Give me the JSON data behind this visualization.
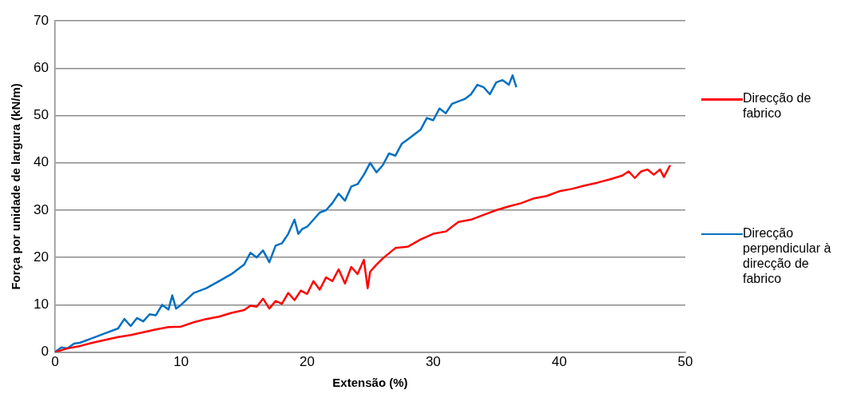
{
  "chart_data": {
    "type": "line",
    "xlabel": "Extensão (%)",
    "ylabel": "Força por unidade de largura (kN/m)",
    "xlim": [
      0,
      50
    ],
    "xticks": [
      0,
      10,
      20,
      30,
      40,
      50
    ],
    "ylim": [
      0,
      70
    ],
    "yticks": [
      0,
      10,
      20,
      30,
      40,
      50,
      60,
      70
    ],
    "grid": "y",
    "legend": "right",
    "series": [
      {
        "name": "Direcção de fabrico",
        "color": "#ff0000",
        "x": [
          0,
          1,
          2,
          3,
          4,
          5,
          6,
          7,
          8,
          9,
          10,
          11,
          12,
          13,
          14,
          15,
          15.5,
          16,
          16.5,
          17,
          17.5,
          18,
          18.5,
          19,
          19.5,
          20,
          20.5,
          21,
          21.5,
          22,
          22.5,
          23,
          23.5,
          24,
          24.5,
          24.8,
          25,
          25.5,
          26,
          27,
          28,
          29,
          30,
          31,
          32,
          33,
          34,
          35,
          36,
          37,
          38,
          39,
          40,
          41,
          42,
          43,
          44,
          45,
          45.5,
          46,
          46.5,
          47,
          47.5,
          48,
          48.3,
          48.6,
          48.8
        ],
        "values": [
          0,
          0.8,
          1.3,
          2,
          2.6,
          3.2,
          3.6,
          4.2,
          4.8,
          5.3,
          5.4,
          6.3,
          7,
          7.5,
          8.3,
          8.9,
          9.8,
          9.6,
          11.3,
          9.2,
          10.8,
          10.2,
          12.5,
          11,
          13,
          12.3,
          15,
          13.2,
          15.8,
          15,
          17.5,
          14.5,
          18,
          16.5,
          19.5,
          13.5,
          17,
          18.5,
          19.8,
          22,
          22.3,
          23.8,
          25,
          25.5,
          27.5,
          28,
          29,
          30,
          30.8,
          31.5,
          32.5,
          33,
          34,
          34.5,
          35.2,
          35.8,
          36.5,
          37.3,
          38.2,
          36.8,
          38.2,
          38.6,
          37.5,
          38.6,
          37,
          38.5,
          39.5
        ]
      },
      {
        "name": "Direcção perpendicular à direcção de fabrico",
        "color": "#0070c0",
        "x": [
          0,
          0.5,
          1,
          1.5,
          2,
          3,
          4,
          5,
          5.5,
          6,
          6.5,
          7,
          7.5,
          8,
          8.5,
          9,
          9.3,
          9.6,
          10,
          11,
          12,
          13,
          14,
          15,
          15.5,
          16,
          16.5,
          17,
          17.5,
          18,
          18.5,
          19,
          19.3,
          19.6,
          20,
          21,
          21.5,
          22,
          22.5,
          23,
          23.5,
          24,
          24.5,
          25,
          25.5,
          26,
          26.5,
          27,
          27.5,
          28,
          28.5,
          29,
          29.5,
          30,
          30.5,
          31,
          31.5,
          32,
          32.5,
          33,
          33.5,
          34,
          34.5,
          35,
          35.5,
          36,
          36.3,
          36.6
        ],
        "values": [
          0,
          1,
          0.8,
          1.8,
          2,
          3,
          4,
          5,
          7,
          5.5,
          7.2,
          6.5,
          8,
          7.8,
          10,
          9,
          12,
          9.2,
          10,
          12.5,
          13.5,
          15,
          16.5,
          18.5,
          21,
          20,
          21.5,
          19,
          22.5,
          23,
          25,
          28,
          25,
          26,
          26.5,
          29.5,
          30,
          31.5,
          33.5,
          32,
          35,
          35.5,
          37.5,
          40,
          38,
          39.5,
          42,
          41.5,
          44,
          45,
          46,
          47,
          49.5,
          49,
          51.5,
          50.5,
          52.5,
          53,
          53.5,
          54.5,
          56.5,
          56,
          54.5,
          57,
          57.5,
          56.5,
          58.5,
          56
        ]
      }
    ]
  }
}
